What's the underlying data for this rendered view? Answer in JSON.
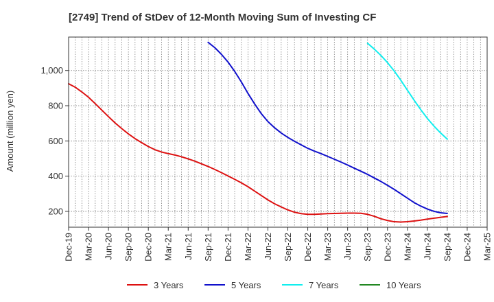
{
  "chart_data": {
    "type": "line",
    "title": "[2749]  Trend of StDev of 12-Month Moving Sum of Investing CF",
    "ylabel": "Amount (million yen)",
    "xlabel": "",
    "x_ticks": [
      "Dec-19",
      "Mar-20",
      "Jun-20",
      "Sep-20",
      "Dec-20",
      "Mar-21",
      "Jun-21",
      "Sep-21",
      "Dec-21",
      "Mar-22",
      "Jun-22",
      "Sep-22",
      "Dec-22",
      "Mar-23",
      "Jun-23",
      "Sep-23",
      "Dec-23",
      "Mar-24",
      "Jun-24",
      "Sep-24",
      "Dec-24",
      "Mar-25"
    ],
    "y_ticks": [
      200,
      400,
      600,
      800,
      1000
    ],
    "y_tick_labels": [
      "200",
      "400",
      "600",
      "800",
      "1,000"
    ],
    "ylim": [
      110,
      1190
    ],
    "grid": true,
    "legend_position": "bottom",
    "colors": {
      "3y": "#dd1111",
      "5y": "#1111cc",
      "7y": "#11eeee",
      "10y": "#228822",
      "grid": "#777777",
      "axis": "#333333"
    },
    "series": [
      {
        "name": "3 Years",
        "color": "#dd1111",
        "x": [
          "Dec-19",
          "Jan-20",
          "Feb-20",
          "Mar-20",
          "Apr-20",
          "May-20",
          "Jun-20",
          "Jul-20",
          "Aug-20",
          "Sep-20",
          "Oct-20",
          "Nov-20",
          "Dec-20",
          "Jan-21",
          "Feb-21",
          "Mar-21",
          "Apr-21",
          "May-21",
          "Jun-21",
          "Jul-21",
          "Aug-21",
          "Sep-21",
          "Oct-21",
          "Nov-21",
          "Dec-21",
          "Jan-22",
          "Feb-22",
          "Mar-22",
          "Apr-22",
          "May-22",
          "Jun-22",
          "Jul-22",
          "Aug-22",
          "Sep-22",
          "Oct-22",
          "Nov-22",
          "Dec-22",
          "Jan-23",
          "Feb-23",
          "Mar-23",
          "Apr-23",
          "May-23",
          "Jun-23",
          "Jul-23",
          "Aug-23",
          "Sep-23",
          "Oct-23",
          "Nov-23",
          "Dec-23",
          "Jan-24",
          "Feb-24",
          "Mar-24",
          "Apr-24",
          "May-24",
          "Jun-24",
          "Jul-24",
          "Aug-24",
          "Sep-24"
        ],
        "values": [
          925,
          905,
          878,
          848,
          812,
          775,
          738,
          702,
          670,
          640,
          613,
          590,
          568,
          550,
          537,
          528,
          520,
          510,
          498,
          485,
          470,
          455,
          438,
          420,
          401,
          382,
          362,
          340,
          315,
          290,
          265,
          243,
          225,
          208,
          195,
          187,
          183,
          183,
          185,
          187,
          188,
          189,
          190,
          190,
          189,
          183,
          172,
          158,
          148,
          141,
          139,
          141,
          145,
          150,
          156,
          161,
          166,
          171
        ]
      },
      {
        "name": "5 Years",
        "color": "#1111cc",
        "x": [
          "Sep-21",
          "Oct-21",
          "Nov-21",
          "Dec-21",
          "Jan-22",
          "Feb-22",
          "Mar-22",
          "Apr-22",
          "May-22",
          "Jun-22",
          "Jul-22",
          "Aug-22",
          "Sep-22",
          "Oct-22",
          "Nov-22",
          "Dec-22",
          "Jan-23",
          "Feb-23",
          "Mar-23",
          "Apr-23",
          "May-23",
          "Jun-23",
          "Jul-23",
          "Aug-23",
          "Sep-23",
          "Oct-23",
          "Nov-23",
          "Dec-23",
          "Jan-24",
          "Feb-24",
          "Mar-24",
          "Apr-24",
          "May-24",
          "Jun-24",
          "Jul-24",
          "Aug-24",
          "Sep-24"
        ],
        "values": [
          1160,
          1130,
          1092,
          1048,
          995,
          935,
          870,
          810,
          755,
          710,
          675,
          645,
          620,
          598,
          578,
          558,
          542,
          528,
          512,
          496,
          480,
          463,
          445,
          428,
          410,
          390,
          370,
          348,
          325,
          300,
          275,
          250,
          230,
          213,
          200,
          192,
          188
        ]
      },
      {
        "name": "7 Years",
        "color": "#11eeee",
        "x": [
          "Sep-23",
          "Oct-23",
          "Nov-23",
          "Dec-23",
          "Jan-24",
          "Feb-24",
          "Mar-24",
          "Apr-24",
          "May-24",
          "Jun-24",
          "Jul-24",
          "Aug-24",
          "Sep-24"
        ],
        "values": [
          1155,
          1122,
          1086,
          1045,
          998,
          945,
          888,
          832,
          778,
          728,
          684,
          645,
          610
        ]
      },
      {
        "name": "10 Years",
        "color": "#228822",
        "x": [],
        "values": []
      }
    ]
  }
}
